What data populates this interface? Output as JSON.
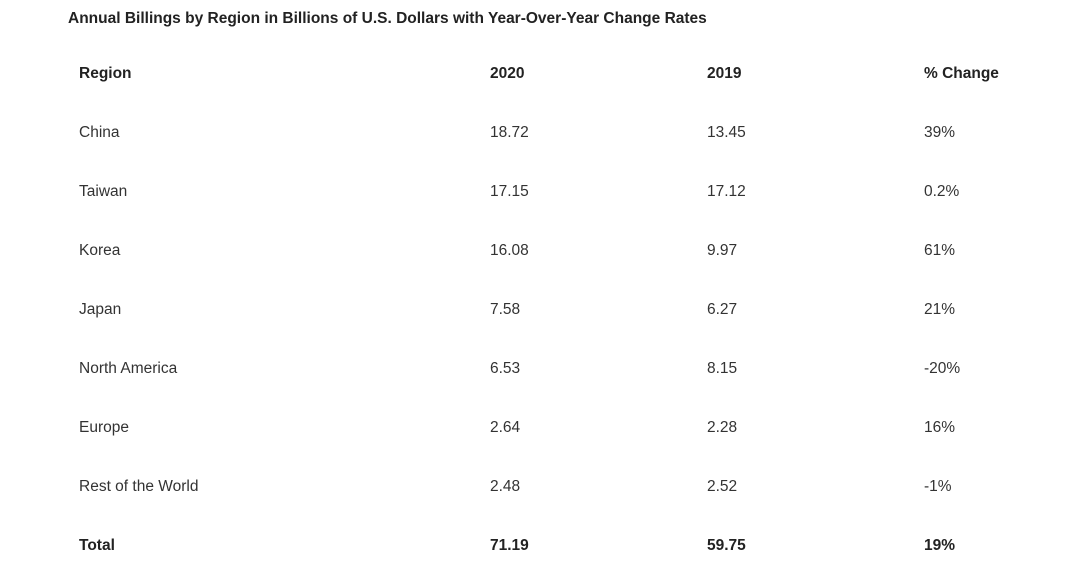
{
  "chart_data": {
    "type": "table",
    "title": "Annual Billings by Region in Billions of U.S. Dollars with Year-Over-Year Change Rates",
    "columns": [
      "Region",
      "2020",
      "2019",
      "% Change"
    ],
    "rows": [
      [
        "China",
        "18.72",
        "13.45",
        "39%"
      ],
      [
        "Taiwan",
        "17.15",
        "17.12",
        "0.2%"
      ],
      [
        "Korea",
        "16.08",
        "9.97",
        "61%"
      ],
      [
        "Japan",
        "7.58",
        "6.27",
        "21%"
      ],
      [
        "North America",
        "6.53",
        "8.15",
        "-20%"
      ],
      [
        "Europe",
        "2.64",
        "2.28",
        "16%"
      ],
      [
        "Rest of the World",
        "2.48",
        "2.52",
        "-1%"
      ]
    ],
    "total": [
      "Total",
      "71.19",
      "59.75",
      "19%"
    ]
  }
}
